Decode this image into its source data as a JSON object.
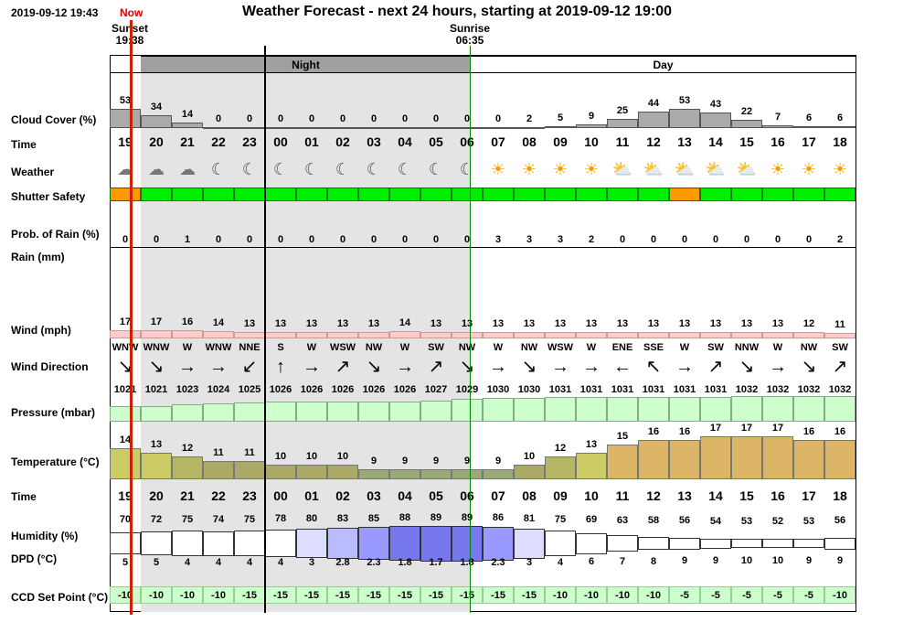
{
  "header": {
    "current_time": "2019-09-12 19:43",
    "now_label": "Now",
    "title": "Weather Forecast - next 24 hours, starting at 2019-09-12 19:00",
    "sunset_label": "Sunset",
    "sunset_time": "19:38",
    "sunrise_label": "Sunrise",
    "sunrise_time": "06:35"
  },
  "bands": {
    "night": "Night",
    "day": "Day"
  },
  "row_labels": {
    "cloud": "Cloud Cover (%)",
    "time": "Time",
    "weather": "Weather",
    "shutter": "Shutter Safety",
    "rain_prob": "Prob. of Rain (%)",
    "rain_mm": "Rain (mm)",
    "wind": "Wind (mph)",
    "wind_dir": "Wind Direction",
    "pressure": "Pressure (mbar)",
    "temperature": "Temperature (°C)",
    "time2": "Time",
    "humidity": "Humidity (%)",
    "dpd": "DPD (°C)",
    "ccd": "CCD Set Point (°C)"
  },
  "hours": [
    "19",
    "20",
    "21",
    "22",
    "23",
    "00",
    "01",
    "02",
    "03",
    "04",
    "05",
    "06",
    "07",
    "08",
    "09",
    "10",
    "11",
    "12",
    "13",
    "14",
    "15",
    "16",
    "17",
    "18"
  ],
  "cloud_cover": [
    53,
    34,
    14,
    0,
    0,
    0,
    0,
    0,
    0,
    0,
    0,
    0,
    0,
    2,
    5,
    9,
    25,
    44,
    53,
    43,
    22,
    7,
    6,
    6
  ],
  "weather_icons": [
    "partly-cloudy-night-icon",
    "partly-cloudy-night-icon",
    "partly-cloudy-night-icon",
    "moon-icon",
    "moon-icon",
    "moon-icon",
    "moon-icon",
    "moon-icon",
    "moon-icon",
    "moon-icon",
    "moon-icon",
    "moon-icon",
    "sun-icon",
    "sun-icon",
    "sun-icon",
    "sun-icon",
    "partly-cloudy-day-icon",
    "partly-cloudy-day-icon",
    "partly-cloudy-day-icon",
    "partly-cloudy-day-icon",
    "partly-cloudy-day-icon",
    "sun-icon",
    "sun-icon",
    "sun-icon"
  ],
  "shutter_safety": [
    "caution",
    "safe",
    "safe",
    "safe",
    "safe",
    "safe",
    "safe",
    "safe",
    "safe",
    "safe",
    "safe",
    "safe",
    "safe",
    "safe",
    "safe",
    "safe",
    "safe",
    "safe",
    "caution",
    "safe",
    "safe",
    "safe",
    "safe",
    "safe"
  ],
  "shutter_colors": {
    "safe": "#00ee00",
    "caution": "#ff9900"
  },
  "rain_prob": [
    0,
    0,
    1,
    0,
    0,
    0,
    0,
    0,
    0,
    0,
    0,
    0,
    3,
    3,
    3,
    2,
    0,
    0,
    0,
    0,
    0,
    0,
    0,
    2
  ],
  "wind_speed": [
    17,
    17,
    16,
    14,
    13,
    13,
    13,
    13,
    13,
    14,
    13,
    13,
    13,
    13,
    13,
    13,
    13,
    13,
    13,
    13,
    13,
    13,
    12,
    11
  ],
  "wind_direction": [
    "WNW",
    "WNW",
    "W",
    "WNW",
    "NNE",
    "S",
    "W",
    "WSW",
    "NW",
    "W",
    "SW",
    "NW",
    "W",
    "NW",
    "WSW",
    "W",
    "ENE",
    "SSE",
    "W",
    "SW",
    "NNW",
    "W",
    "NW",
    "SW"
  ],
  "wind_arrows": [
    "↘",
    "↘",
    "→",
    "→",
    "↙",
    "↑",
    "→",
    "↗",
    "↘",
    "→",
    "↗",
    "↘",
    "→",
    "↘",
    "→",
    "→",
    "←",
    "↖",
    "→",
    "↗",
    "↘",
    "→",
    "↘",
    "↗"
  ],
  "pressure": [
    1021,
    1021,
    1023,
    1024,
    1025,
    1026,
    1026,
    1026,
    1026,
    1026,
    1027,
    1029,
    1030,
    1030,
    1031,
    1031,
    1031,
    1031,
    1031,
    1031,
    1032,
    1032,
    1032,
    1032
  ],
  "temperature": [
    14,
    13,
    12,
    11,
    11,
    10,
    10,
    10,
    9,
    9,
    9,
    9,
    9,
    10,
    12,
    13,
    15,
    16,
    16,
    17,
    17,
    17,
    16,
    16
  ],
  "humidity": [
    70,
    72,
    75,
    74,
    75,
    78,
    80,
    83,
    85,
    88,
    89,
    89,
    86,
    81,
    75,
    69,
    63,
    58,
    56,
    54,
    53,
    52,
    53,
    56
  ],
  "dpd": [
    "5",
    "5",
    "4",
    "4",
    "4",
    "4",
    "3",
    "2.8",
    "2.3",
    "1.8",
    "1.7",
    "1.8",
    "2.3",
    "3",
    "4",
    "6",
    "7",
    "8",
    "9",
    "9",
    "10",
    "10",
    "9",
    "9"
  ],
  "ccd_set_point": [
    -10,
    -10,
    -10,
    -10,
    -15,
    -15,
    -15,
    -15,
    -15,
    -15,
    -15,
    -15,
    -15,
    -15,
    -10,
    -10,
    -10,
    -10,
    -5,
    -5,
    -5,
    -5,
    -5,
    -10
  ],
  "colors": {
    "now_line": "#cc2200",
    "night_shade": "#e4e4e4",
    "night_band": "#a0a0a0",
    "sunrise_line": "#008800",
    "cloud_bar": "#aaaaaa",
    "wind_bar": "#ffcccc",
    "pressure_bar": "#ccffcc"
  }
}
